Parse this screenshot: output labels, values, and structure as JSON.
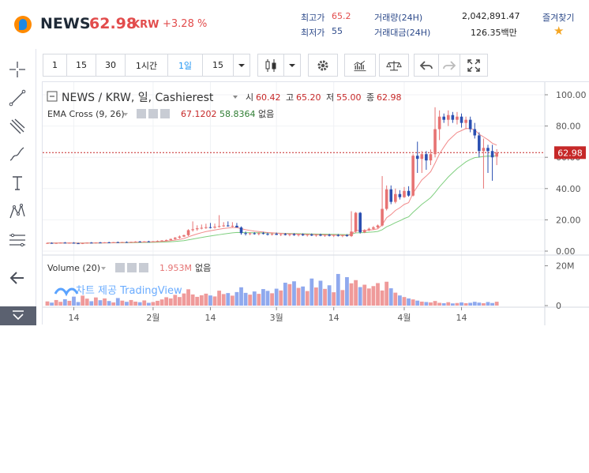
{
  "header": {
    "coin": "NEWS",
    "price": "62.98",
    "unit": "KRW",
    "change": "+3.28 %",
    "high_label": "최고가",
    "high_value": "65.2",
    "low_label": "최저가",
    "low_value": "55",
    "volume_label": "거래량(24H)",
    "volume_value": "2,042,891.47",
    "amount_label": "거래대금(24H)",
    "amount_value": "126.35백만",
    "favorite_label": "즐겨찾기",
    "star": "★"
  },
  "toolbar": {
    "intervals": [
      "1",
      "15",
      "30",
      "1시간",
      "1일",
      "15"
    ],
    "active_interval": "1일"
  },
  "legend": {
    "symbol_line": "NEWS / KRW, 일, Cashierest",
    "open_label": "시",
    "open_value": "60.42",
    "high_label": "고",
    "high_value": "65.20",
    "low_label": "저",
    "low_value": "55.00",
    "close_label": "종",
    "close_value": "62.98",
    "ema_label": "EMA Cross (9, 26)",
    "ema_fast": "67.1202",
    "ema_slow": "58.8364",
    "ema_none": "없음",
    "volume_label": "Volume (20)",
    "volume_value": "1.953M",
    "volume_none": "없음",
    "watermark": "차트 제공 TradingView"
  },
  "colors": {
    "up": "#e77373",
    "down": "#2a4fb1",
    "vol_up": "#ef9a9a",
    "vol_down": "#8fa9ee",
    "ema_fast": "#f28b8b",
    "ema_slow": "#7fcf7f",
    "price_line": "#c62828"
  },
  "chart_data": {
    "type": "candlestick",
    "price_axis_ticks": [
      "100.00",
      "80.00",
      "60.00",
      "40.00",
      "20.00",
      "0.00"
    ],
    "ylim": [
      0,
      100
    ],
    "volume_axis_ticks": [
      "20M",
      "0"
    ],
    "volume_ylim": [
      0,
      25
    ],
    "x_ticks": [
      {
        "label": "14",
        "index": 6
      },
      {
        "label": "2월",
        "index": 24
      },
      {
        "label": "14",
        "index": 37
      },
      {
        "label": "3월",
        "index": 52
      },
      {
        "label": "14",
        "index": 65
      },
      {
        "label": "4월",
        "index": 81
      },
      {
        "label": "14",
        "index": 94
      }
    ],
    "last_price": "62.98",
    "candles": [
      {
        "o": 5,
        "h": 5.5,
        "l": 4.6,
        "c": 5.2,
        "v": 2.1
      },
      {
        "o": 5.2,
        "h": 5.6,
        "l": 4.8,
        "c": 5,
        "v": 1.5
      },
      {
        "o": 5,
        "h": 5.4,
        "l": 4.7,
        "c": 5.2,
        "v": 2.8
      },
      {
        "o": 5.2,
        "h": 5.6,
        "l": 4.9,
        "c": 5.4,
        "v": 1.9
      },
      {
        "o": 5.4,
        "h": 5.8,
        "l": 5,
        "c": 5.1,
        "v": 3.2
      },
      {
        "o": 5.1,
        "h": 5.5,
        "l": 4.8,
        "c": 5.3,
        "v": 2.4
      },
      {
        "o": 5.3,
        "h": 5.7,
        "l": 4.9,
        "c": 5,
        "v": 4.5
      },
      {
        "o": 5,
        "h": 5.4,
        "l": 4.6,
        "c": 4.8,
        "v": 1.8
      },
      {
        "o": 4.8,
        "h": 5.3,
        "l": 4.5,
        "c": 5.1,
        "v": 5
      },
      {
        "o": 5.1,
        "h": 5.5,
        "l": 4.8,
        "c": 5.4,
        "v": 3.5
      },
      {
        "o": 5.4,
        "h": 5.8,
        "l": 5,
        "c": 5.2,
        "v": 2.2
      },
      {
        "o": 5.2,
        "h": 5.6,
        "l": 4.9,
        "c": 5.5,
        "v": 4.1
      },
      {
        "o": 5.5,
        "h": 5.9,
        "l": 5.1,
        "c": 5.3,
        "v": 2.7
      },
      {
        "o": 5.3,
        "h": 5.7,
        "l": 5,
        "c": 5.6,
        "v": 3.6
      },
      {
        "o": 5.6,
        "h": 6,
        "l": 5.2,
        "c": 5.4,
        "v": 2.3
      },
      {
        "o": 5.4,
        "h": 5.8,
        "l": 5.1,
        "c": 5.7,
        "v": 1.6
      },
      {
        "o": 5.7,
        "h": 6.1,
        "l": 5.3,
        "c": 5.5,
        "v": 3.8
      },
      {
        "o": 5.5,
        "h": 5.9,
        "l": 5.2,
        "c": 5.8,
        "v": 2.5
      },
      {
        "o": 5.8,
        "h": 6.2,
        "l": 5.4,
        "c": 5.6,
        "v": 1.9
      },
      {
        "o": 5.6,
        "h": 6,
        "l": 5.3,
        "c": 5.9,
        "v": 2.8
      },
      {
        "o": 5.9,
        "h": 6.3,
        "l": 5.5,
        "c": 6.1,
        "v": 2
      },
      {
        "o": 6.1,
        "h": 6.5,
        "l": 5.7,
        "c": 5.9,
        "v": 1.7
      },
      {
        "o": 5.9,
        "h": 6.3,
        "l": 5.6,
        "c": 6.2,
        "v": 2.6
      },
      {
        "o": 6.2,
        "h": 6.6,
        "l": 5.8,
        "c": 6,
        "v": 1.4
      },
      {
        "o": 6,
        "h": 6.4,
        "l": 5.7,
        "c": 6.3,
        "v": 1.8
      },
      {
        "o": 6.3,
        "h": 6.8,
        "l": 5.9,
        "c": 6.5,
        "v": 2.4
      },
      {
        "o": 6.5,
        "h": 7,
        "l": 6.1,
        "c": 6.8,
        "v": 3.1
      },
      {
        "o": 6.8,
        "h": 7.4,
        "l": 6.4,
        "c": 7.1,
        "v": 4.2
      },
      {
        "o": 7.1,
        "h": 8,
        "l": 6.8,
        "c": 7.8,
        "v": 3.6
      },
      {
        "o": 7.8,
        "h": 9,
        "l": 7.3,
        "c": 8.6,
        "v": 5.4
      },
      {
        "o": 8.6,
        "h": 10,
        "l": 8,
        "c": 9.3,
        "v": 4.3
      },
      {
        "o": 9.3,
        "h": 10.5,
        "l": 9,
        "c": 10.2,
        "v": 6.1
      },
      {
        "o": 10.2,
        "h": 14,
        "l": 9.6,
        "c": 13.4,
        "v": 8.2
      },
      {
        "o": 13.4,
        "h": 19,
        "l": 12.5,
        "c": 14,
        "v": 5.6
      },
      {
        "o": 14,
        "h": 16.5,
        "l": 13,
        "c": 14.6,
        "v": 4.4
      },
      {
        "o": 14.6,
        "h": 17,
        "l": 13.9,
        "c": 14.9,
        "v": 5.2
      },
      {
        "o": 14.9,
        "h": 17.5,
        "l": 14.2,
        "c": 15.3,
        "v": 6
      },
      {
        "o": 15.3,
        "h": 18,
        "l": 14.5,
        "c": 15,
        "v": 5.1
      },
      {
        "o": 15,
        "h": 17.6,
        "l": 14.4,
        "c": 15.6,
        "v": 4.6
      },
      {
        "o": 15.6,
        "h": 23,
        "l": 15,
        "c": 16,
        "v": 7.5
      },
      {
        "o": 16,
        "h": 18.5,
        "l": 15.4,
        "c": 16.4,
        "v": 5.8
      },
      {
        "o": 16.4,
        "h": 19,
        "l": 15.6,
        "c": 15.9,
        "v": 6.3
      },
      {
        "o": 15.9,
        "h": 18.5,
        "l": 15.2,
        "c": 16.2,
        "v": 5
      },
      {
        "o": 16.2,
        "h": 18,
        "l": 15.5,
        "c": 15.1,
        "v": 6.8
      },
      {
        "o": 15.1,
        "h": 15.8,
        "l": 10.5,
        "c": 11.5,
        "v": 9.2
      },
      {
        "o": 11.5,
        "h": 12.5,
        "l": 10,
        "c": 11,
        "v": 6.4
      },
      {
        "o": 11,
        "h": 12,
        "l": 10.2,
        "c": 11.4,
        "v": 5.5
      },
      {
        "o": 11.4,
        "h": 12.1,
        "l": 10.5,
        "c": 10.9,
        "v": 7.1
      },
      {
        "o": 10.9,
        "h": 12,
        "l": 10.1,
        "c": 11.5,
        "v": 5.9
      },
      {
        "o": 11.5,
        "h": 12.3,
        "l": 10.6,
        "c": 11,
        "v": 8.3
      },
      {
        "o": 11,
        "h": 11.8,
        "l": 10,
        "c": 10.6,
        "v": 7.4
      },
      {
        "o": 10.6,
        "h": 11.5,
        "l": 9.9,
        "c": 11.1,
        "v": 6.2
      },
      {
        "o": 11.1,
        "h": 11.9,
        "l": 10.3,
        "c": 10.4,
        "v": 8.5
      },
      {
        "o": 10.4,
        "h": 11.2,
        "l": 9.6,
        "c": 10.9,
        "v": 7.6
      },
      {
        "o": 10.9,
        "h": 11.6,
        "l": 10,
        "c": 10.3,
        "v": 11.5
      },
      {
        "o": 10.3,
        "h": 11.1,
        "l": 9.5,
        "c": 10.8,
        "v": 10.8
      },
      {
        "o": 10.8,
        "h": 11.5,
        "l": 9.8,
        "c": 10.2,
        "v": 12.2
      },
      {
        "o": 10.2,
        "h": 11,
        "l": 9.4,
        "c": 10.7,
        "v": 8.9
      },
      {
        "o": 10.7,
        "h": 11.4,
        "l": 9.7,
        "c": 10.1,
        "v": 9.6
      },
      {
        "o": 10.1,
        "h": 10.9,
        "l": 9.3,
        "c": 10.6,
        "v": 7.3
      },
      {
        "o": 10.6,
        "h": 11.3,
        "l": 9.6,
        "c": 10,
        "v": 13.6
      },
      {
        "o": 10,
        "h": 10.8,
        "l": 9.2,
        "c": 10.5,
        "v": 9.1
      },
      {
        "o": 10.5,
        "h": 11.2,
        "l": 9.5,
        "c": 9.9,
        "v": 12.5
      },
      {
        "o": 9.9,
        "h": 10.7,
        "l": 9.1,
        "c": 10.4,
        "v": 8.4
      },
      {
        "o": 10.4,
        "h": 11.1,
        "l": 9.4,
        "c": 9.8,
        "v": 10.2
      },
      {
        "o": 9.8,
        "h": 10.6,
        "l": 9,
        "c": 10.3,
        "v": 6.7
      },
      {
        "o": 10.3,
        "h": 11,
        "l": 9.3,
        "c": 9.7,
        "v": 15.9
      },
      {
        "o": 9.7,
        "h": 10.5,
        "l": 8.9,
        "c": 10.2,
        "v": 7.8
      },
      {
        "o": 10.2,
        "h": 10.9,
        "l": 9.2,
        "c": 9.6,
        "v": 14.3
      },
      {
        "o": 9.6,
        "h": 25.5,
        "l": 9,
        "c": 12.5,
        "v": 11.2
      },
      {
        "o": 12.5,
        "h": 25,
        "l": 11.5,
        "c": 24.5,
        "v": 12.8
      },
      {
        "o": 24.5,
        "h": 25,
        "l": 11.2,
        "c": 12,
        "v": 9.3
      },
      {
        "o": 12,
        "h": 14,
        "l": 11.5,
        "c": 13.5,
        "v": 10.5
      },
      {
        "o": 13.5,
        "h": 15,
        "l": 12.8,
        "c": 14.3,
        "v": 8.6
      },
      {
        "o": 14.3,
        "h": 16,
        "l": 13.5,
        "c": 15.2,
        "v": 9.8
      },
      {
        "o": 15.2,
        "h": 17,
        "l": 14.6,
        "c": 16.4,
        "v": 11.3
      },
      {
        "o": 16.4,
        "h": 48,
        "l": 15.8,
        "c": 27,
        "v": 7.6
      },
      {
        "o": 27,
        "h": 42,
        "l": 26,
        "c": 39.5,
        "v": 12
      },
      {
        "o": 39.5,
        "h": 42,
        "l": 30,
        "c": 31.5,
        "v": 8.7
      },
      {
        "o": 31.5,
        "h": 40,
        "l": 30.5,
        "c": 36.5,
        "v": 6.5
      },
      {
        "o": 36.5,
        "h": 39,
        "l": 33,
        "c": 34.5,
        "v": 5.1
      },
      {
        "o": 34.5,
        "h": 41,
        "l": 34,
        "c": 38.5,
        "v": 4.3
      },
      {
        "o": 38.5,
        "h": 41.5,
        "l": 34.8,
        "c": 35.5,
        "v": 3.6
      },
      {
        "o": 35.5,
        "h": 62,
        "l": 35,
        "c": 61,
        "v": 3.1
      },
      {
        "o": 61,
        "h": 70,
        "l": 50,
        "c": 59,
        "v": 2.5
      },
      {
        "o": 59,
        "h": 64,
        "l": 50,
        "c": 62,
        "v": 2
      },
      {
        "o": 62,
        "h": 64,
        "l": 52,
        "c": 58,
        "v": 1.8
      },
      {
        "o": 58,
        "h": 65,
        "l": 55,
        "c": 62,
        "v": 1.6
      },
      {
        "o": 62,
        "h": 92,
        "l": 60,
        "c": 78,
        "v": 2.3
      },
      {
        "o": 78,
        "h": 90,
        "l": 71,
        "c": 86,
        "v": 1.4
      },
      {
        "o": 86,
        "h": 88,
        "l": 82,
        "c": 84,
        "v": 1.2
      },
      {
        "o": 84,
        "h": 90,
        "l": 80,
        "c": 87,
        "v": 1.7
      },
      {
        "o": 87,
        "h": 89,
        "l": 82,
        "c": 84,
        "v": 1.1
      },
      {
        "o": 84,
        "h": 89,
        "l": 81,
        "c": 86,
        "v": 1.3
      },
      {
        "o": 86,
        "h": 88,
        "l": 79,
        "c": 82,
        "v": 1.6
      },
      {
        "o": 82,
        "h": 86,
        "l": 78,
        "c": 84,
        "v": 1.2
      },
      {
        "o": 84,
        "h": 86,
        "l": 76,
        "c": 78,
        "v": 1.4
      },
      {
        "o": 78,
        "h": 82,
        "l": 72,
        "c": 74,
        "v": 1.9
      },
      {
        "o": 74,
        "h": 76,
        "l": 60,
        "c": 64,
        "v": 1.5
      },
      {
        "o": 64,
        "h": 72,
        "l": 40,
        "c": 66,
        "v": 1.2
      },
      {
        "o": 66,
        "h": 68,
        "l": 50,
        "c": 64,
        "v": 1.8
      },
      {
        "o": 64,
        "h": 68,
        "l": 45,
        "c": 60,
        "v": 1.3
      },
      {
        "o": 60.42,
        "h": 65.2,
        "l": 55,
        "c": 62.98,
        "v": 1.95
      }
    ]
  }
}
